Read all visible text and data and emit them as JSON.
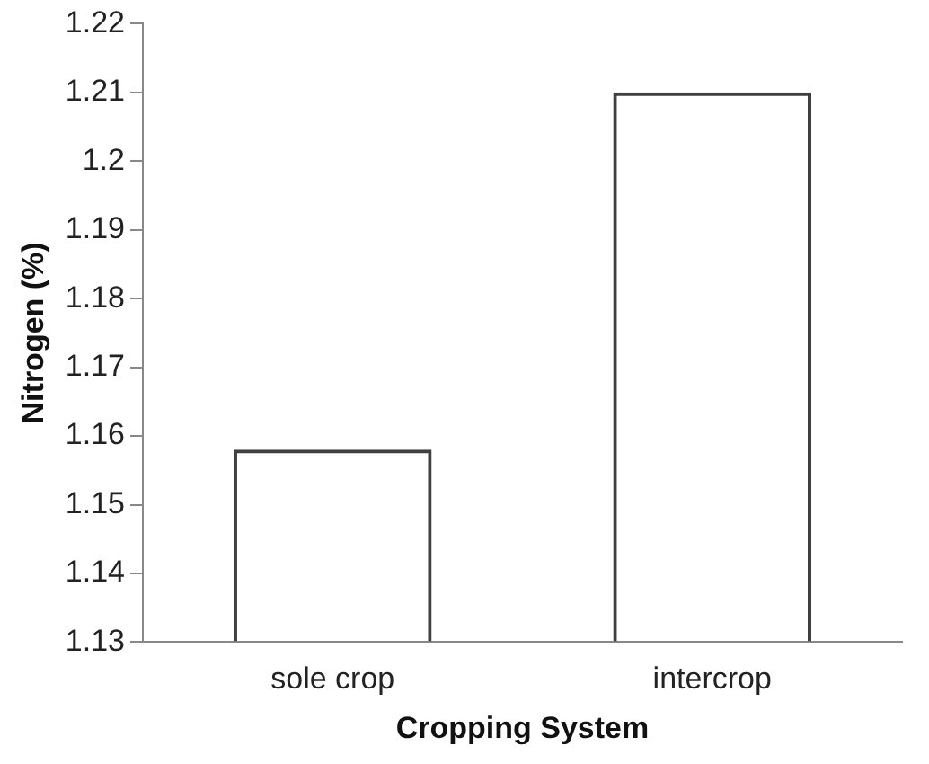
{
  "chart_data": {
    "type": "bar",
    "xlabel": "Cropping System",
    "ylabel": "Nitrogen (%)",
    "categories": [
      "sole crop",
      "intercrop"
    ],
    "series": [
      {
        "color": "#404040",
        "values": [
          1.158,
          1.21
        ]
      }
    ],
    "ylim": [
      1.13,
      1.22
    ],
    "yticks": [
      1.13,
      1.14,
      1.15,
      1.16,
      1.17,
      1.18,
      1.19,
      1.2,
      1.21,
      1.22
    ],
    "grid": false,
    "legend": false
  }
}
